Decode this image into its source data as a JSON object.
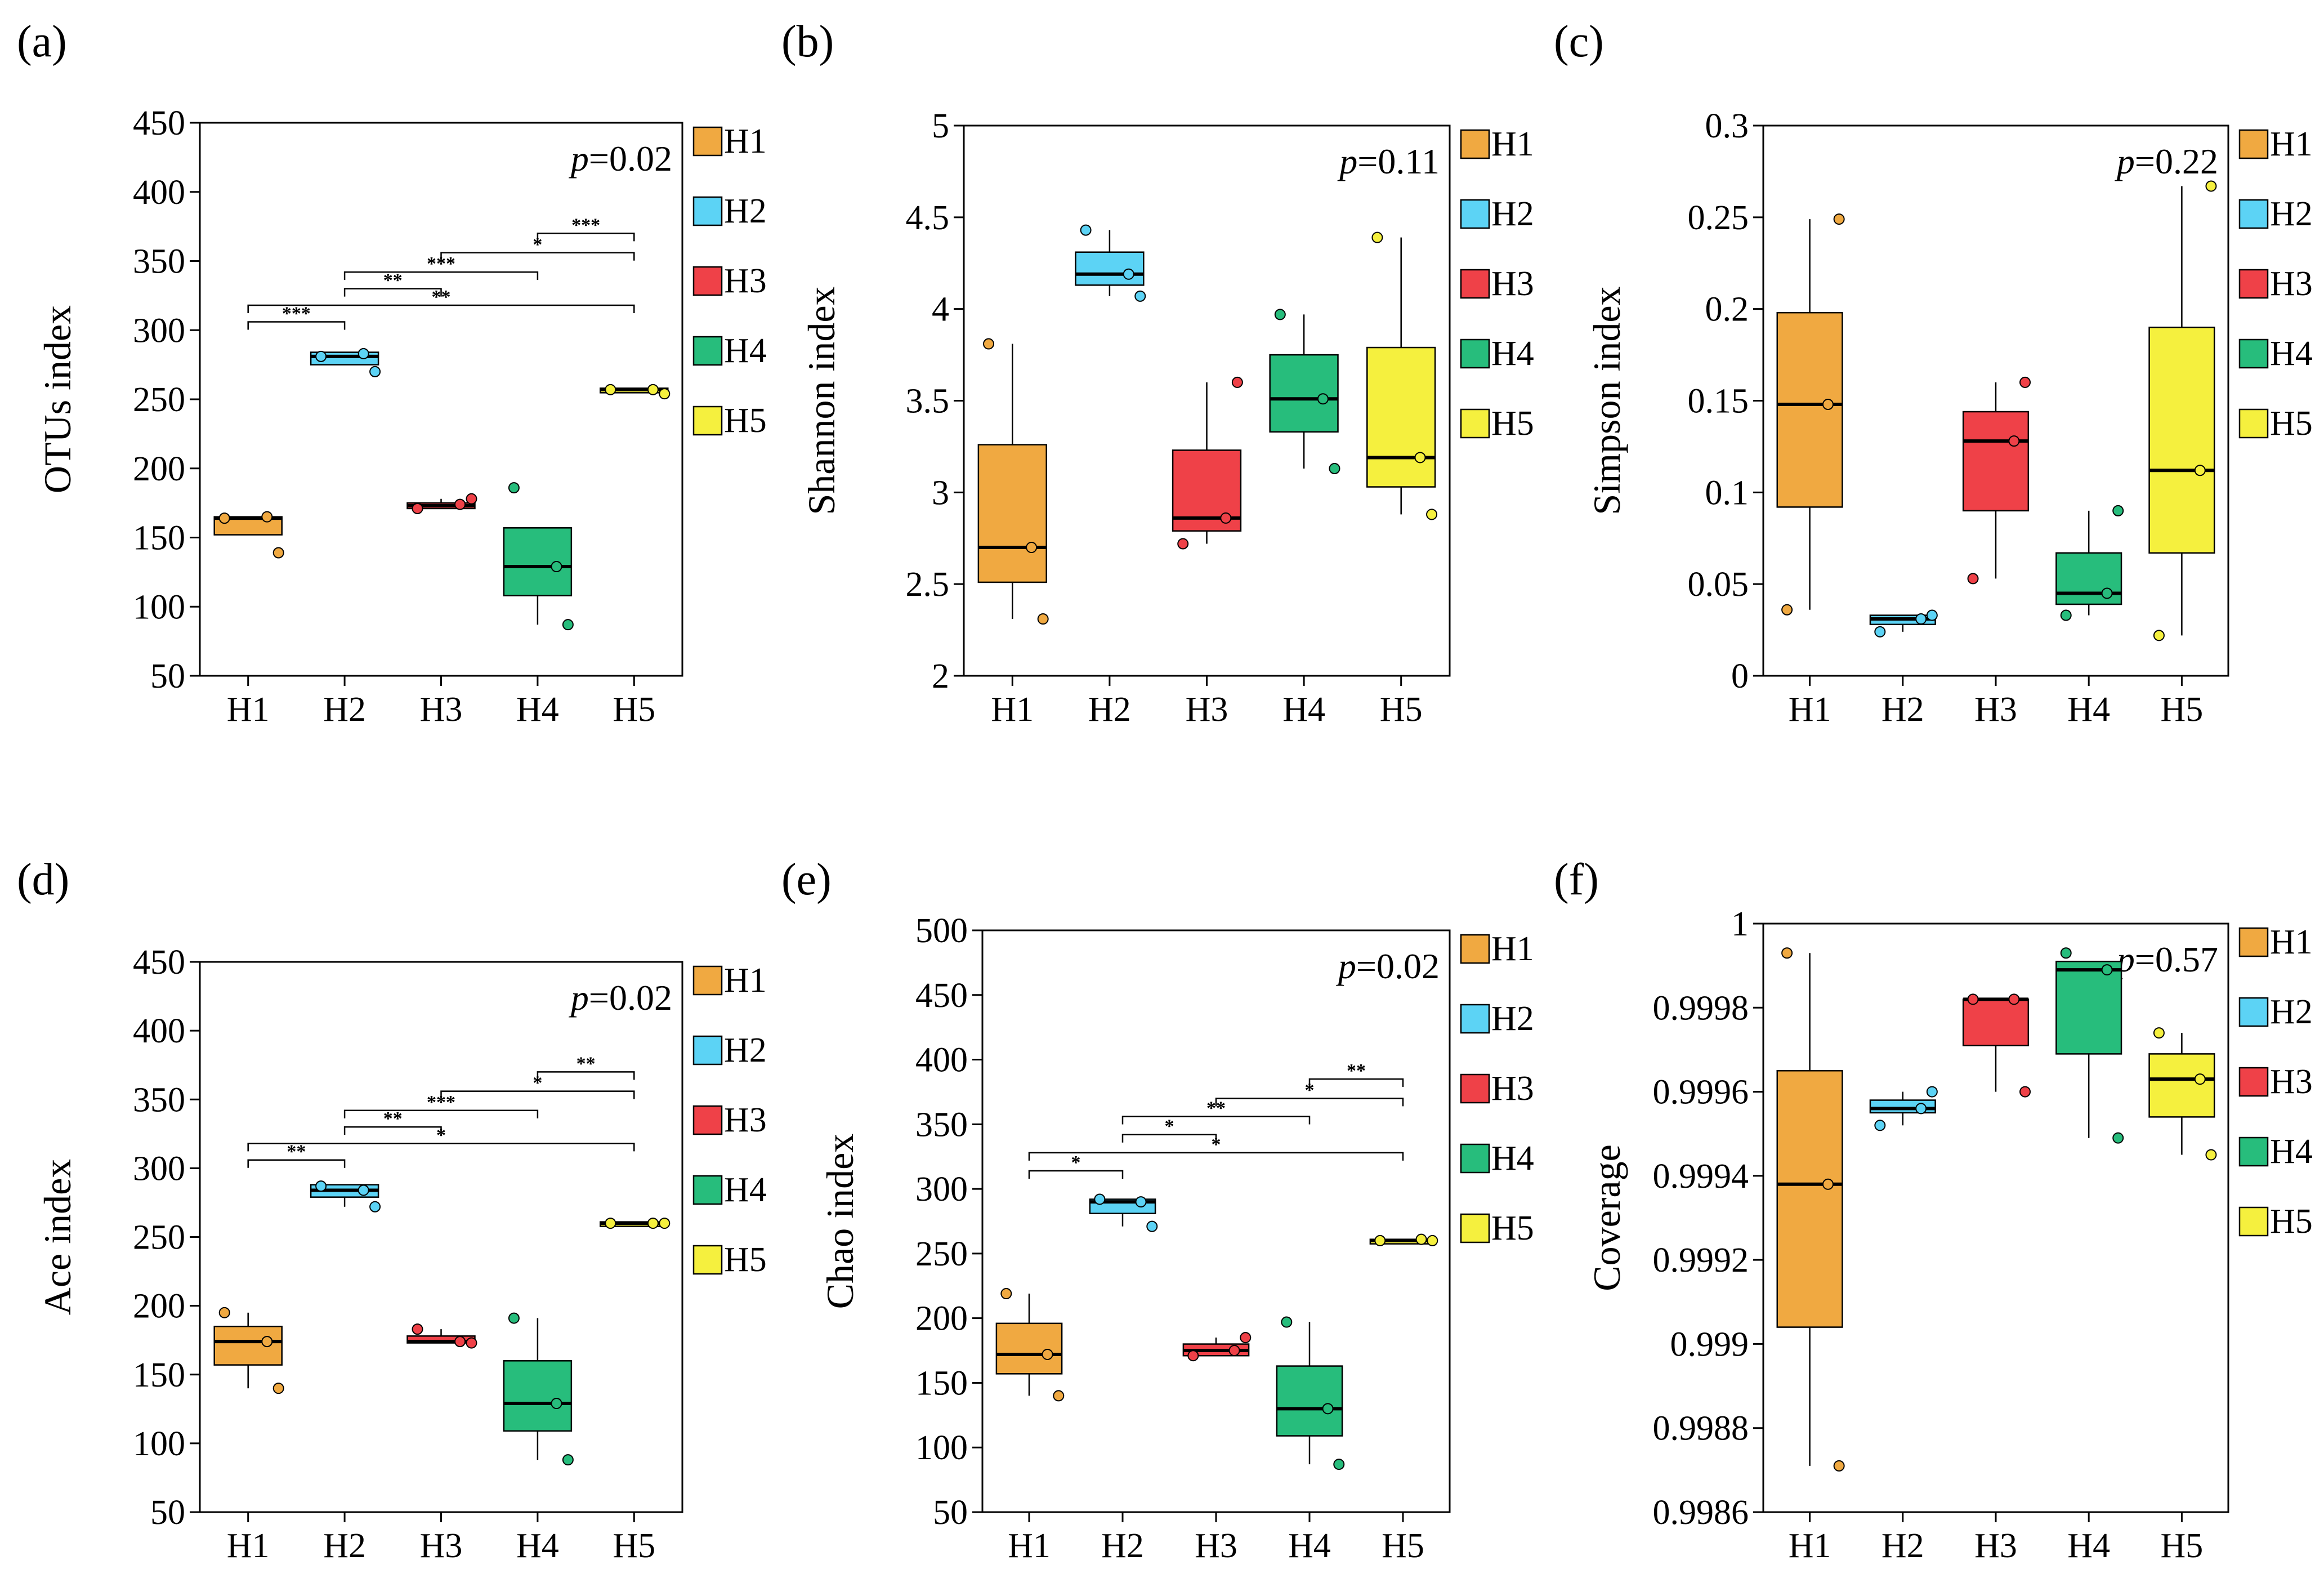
{
  "group_colors": {
    "H1": "#F0A941",
    "H2": "#5CD3F5",
    "H3": "#EF4148",
    "H4": "#27BD7C",
    "H5": "#F5F03E"
  },
  "chart_data": [
    {
      "type": "box",
      "panel": "(a)",
      "ylabel": "OTUs index",
      "ylim": [
        50,
        450
      ],
      "yticks": [
        50,
        100,
        150,
        200,
        250,
        300,
        350,
        400,
        450
      ],
      "ytick_labels": [
        "50",
        "100",
        "150",
        "200",
        "250",
        "300",
        "350",
        "400",
        "450"
      ],
      "categories": [
        "H1",
        "H2",
        "H3",
        "H4",
        "H5"
      ],
      "pvalue": {
        "italic": "p",
        "value": "=0.02"
      },
      "boxes": [
        {
          "q1": 152,
          "median": 164,
          "q3": 165,
          "whisker_low": 152,
          "whisker_high": 165
        },
        {
          "q1": 275,
          "median": 281,
          "q3": 284,
          "whisker_low": 275,
          "whisker_high": 284
        },
        {
          "q1": 171,
          "median": 173,
          "q3": 175,
          "whisker_low": 171,
          "whisker_high": 178
        },
        {
          "q1": 108,
          "median": 129,
          "q3": 157,
          "whisker_low": 87,
          "whisker_high": 157
        },
        {
          "q1": 256,
          "median": 257,
          "q3": 258,
          "whisker_low": 256,
          "whisker_high": 258
        }
      ],
      "points": [
        [
          164,
          165,
          139
        ],
        [
          281,
          283,
          270
        ],
        [
          171,
          174,
          178
        ],
        [
          186,
          129,
          87
        ],
        [
          257,
          257,
          254
        ]
      ],
      "comparisons": [
        {
          "from": "H1",
          "to": "H2",
          "label": "***",
          "y": 306
        },
        {
          "from": "H1",
          "to": "H5",
          "label": "**",
          "y": 318
        },
        {
          "from": "H2",
          "to": "H3",
          "label": "**",
          "y": 330
        },
        {
          "from": "H2",
          "to": "H4",
          "label": "***",
          "y": 342
        },
        {
          "from": "H3",
          "to": "H5",
          "label": "*",
          "y": 356
        },
        {
          "from": "H4",
          "to": "H5",
          "label": "***",
          "y": 370
        }
      ]
    },
    {
      "type": "box",
      "panel": "(b)",
      "ylabel": "Shannon index",
      "ylim": [
        2,
        5
      ],
      "yticks": [
        2,
        2.5,
        3,
        3.5,
        4,
        4.5,
        5
      ],
      "ytick_labels": [
        "2",
        "2.5",
        "3",
        "3.5",
        "4",
        "4.5",
        "5"
      ],
      "categories": [
        "H1",
        "H2",
        "H3",
        "H4",
        "H5"
      ],
      "pvalue": {
        "italic": "p",
        "value": "=0.11"
      },
      "boxes": [
        {
          "q1": 2.51,
          "median": 2.7,
          "q3": 3.26,
          "whisker_low": 2.31,
          "whisker_high": 3.81
        },
        {
          "q1": 4.13,
          "median": 4.19,
          "q3": 4.31,
          "whisker_low": 4.07,
          "whisker_high": 4.43
        },
        {
          "q1": 2.79,
          "median": 2.86,
          "q3": 3.23,
          "whisker_low": 2.72,
          "whisker_high": 3.6
        },
        {
          "q1": 3.33,
          "median": 3.51,
          "q3": 3.75,
          "whisker_low": 3.13,
          "whisker_high": 3.97
        },
        {
          "q1": 3.03,
          "median": 3.19,
          "q3": 3.79,
          "whisker_low": 2.88,
          "whisker_high": 4.39
        }
      ],
      "points": [
        [
          3.81,
          2.7,
          2.31
        ],
        [
          4.43,
          4.19,
          4.07
        ],
        [
          2.72,
          2.86,
          3.6
        ],
        [
          3.97,
          3.51,
          3.13
        ],
        [
          4.39,
          3.19,
          2.88
        ]
      ],
      "comparisons": []
    },
    {
      "type": "box",
      "panel": "(c)",
      "ylabel": "Simpson index",
      "ylim": [
        0,
        0.3
      ],
      "yticks": [
        0,
        0.05,
        0.1,
        0.15,
        0.2,
        0.25,
        0.3
      ],
      "ytick_labels": [
        "0",
        "0.05",
        "0.1",
        "0.15",
        "0.2",
        "0.25",
        "0.3"
      ],
      "categories": [
        "H1",
        "H2",
        "H3",
        "H4",
        "H5"
      ],
      "pvalue": {
        "italic": "p",
        "value": "=0.22"
      },
      "boxes": [
        {
          "q1": 0.092,
          "median": 0.148,
          "q3": 0.198,
          "whisker_low": 0.036,
          "whisker_high": 0.249
        },
        {
          "q1": 0.028,
          "median": 0.031,
          "q3": 0.033,
          "whisker_low": 0.024,
          "whisker_high": 0.033
        },
        {
          "q1": 0.09,
          "median": 0.128,
          "q3": 0.144,
          "whisker_low": 0.053,
          "whisker_high": 0.16
        },
        {
          "q1": 0.039,
          "median": 0.045,
          "q3": 0.067,
          "whisker_low": 0.033,
          "whisker_high": 0.09
        },
        {
          "q1": 0.067,
          "median": 0.112,
          "q3": 0.19,
          "whisker_low": 0.022,
          "whisker_high": 0.267
        }
      ],
      "points": [
        [
          0.036,
          0.148,
          0.249
        ],
        [
          0.024,
          0.031,
          0.033
        ],
        [
          0.053,
          0.128,
          0.16
        ],
        [
          0.033,
          0.045,
          0.09
        ],
        [
          0.022,
          0.112,
          0.267
        ]
      ],
      "comparisons": []
    },
    {
      "type": "box",
      "panel": "(d)",
      "ylabel": "Ace index",
      "ylim": [
        50,
        450
      ],
      "yticks": [
        50,
        100,
        150,
        200,
        250,
        300,
        350,
        400,
        450
      ],
      "ytick_labels": [
        "50",
        "100",
        "150",
        "200",
        "250",
        "300",
        "350",
        "400",
        "450"
      ],
      "categories": [
        "H1",
        "H2",
        "H3",
        "H4",
        "H5"
      ],
      "pvalue": {
        "italic": "p",
        "value": "=0.02"
      },
      "boxes": [
        {
          "q1": 157,
          "median": 174,
          "q3": 185,
          "whisker_low": 140,
          "whisker_high": 195
        },
        {
          "q1": 279,
          "median": 284,
          "q3": 288,
          "whisker_low": 272,
          "whisker_high": 288
        },
        {
          "q1": 173,
          "median": 174,
          "q3": 178,
          "whisker_low": 173,
          "whisker_high": 183
        },
        {
          "q1": 109,
          "median": 129,
          "q3": 160,
          "whisker_low": 88,
          "whisker_high": 191
        },
        {
          "q1": 259,
          "median": 260,
          "q3": 261,
          "whisker_low": 259,
          "whisker_high": 261
        }
      ],
      "points": [
        [
          195,
          174,
          140
        ],
        [
          287,
          284,
          272
        ],
        [
          183,
          174,
          173
        ],
        [
          191,
          129,
          88
        ],
        [
          260,
          260,
          260
        ]
      ],
      "comparisons": [
        {
          "from": "H1",
          "to": "H2",
          "label": "**",
          "y": 306
        },
        {
          "from": "H1",
          "to": "H5",
          "label": "*",
          "y": 318
        },
        {
          "from": "H2",
          "to": "H3",
          "label": "**",
          "y": 330
        },
        {
          "from": "H2",
          "to": "H4",
          "label": "***",
          "y": 342
        },
        {
          "from": "H3",
          "to": "H5",
          "label": "*",
          "y": 356
        },
        {
          "from": "H4",
          "to": "H5",
          "label": "**",
          "y": 370
        }
      ]
    },
    {
      "type": "box",
      "panel": "(e)",
      "ylabel": "Chao index",
      "ylim": [
        50,
        500
      ],
      "yticks": [
        50,
        100,
        150,
        200,
        250,
        300,
        350,
        400,
        450,
        500
      ],
      "ytick_labels": [
        "50",
        "100",
        "150",
        "200",
        "250",
        "300",
        "350",
        "400",
        "450",
        "500"
      ],
      "categories": [
        "H1",
        "H2",
        "H3",
        "H4",
        "H5"
      ],
      "pvalue": {
        "italic": "p",
        "value": "=0.02"
      },
      "boxes": [
        {
          "q1": 157,
          "median": 172,
          "q3": 196,
          "whisker_low": 140,
          "whisker_high": 219
        },
        {
          "q1": 281,
          "median": 290,
          "q3": 292,
          "whisker_low": 271,
          "whisker_high": 292
        },
        {
          "q1": 171,
          "median": 175,
          "q3": 180,
          "whisker_low": 171,
          "whisker_high": 185
        },
        {
          "q1": 109,
          "median": 130,
          "q3": 163,
          "whisker_low": 87,
          "whisker_high": 197
        },
        {
          "q1": 259,
          "median": 260,
          "q3": 261,
          "whisker_low": 259,
          "whisker_high": 261
        }
      ],
      "points": [
        [
          219,
          172,
          140
        ],
        [
          292,
          290,
          271
        ],
        [
          171,
          175,
          185
        ],
        [
          197,
          130,
          87
        ],
        [
          260,
          261,
          260
        ]
      ],
      "comparisons": [
        {
          "from": "H1",
          "to": "H2",
          "label": "*",
          "y": 314
        },
        {
          "from": "H1",
          "to": "H5",
          "label": "*",
          "y": 328
        },
        {
          "from": "H2",
          "to": "H3",
          "label": "*",
          "y": 342
        },
        {
          "from": "H2",
          "to": "H4",
          "label": "**",
          "y": 356
        },
        {
          "from": "H3",
          "to": "H5",
          "label": "*",
          "y": 370
        },
        {
          "from": "H4",
          "to": "H5",
          "label": "**",
          "y": 385
        }
      ]
    },
    {
      "type": "box",
      "panel": "(f)",
      "ylabel": "Coverage",
      "ylim": [
        0.9986,
        1.0
      ],
      "yticks": [
        0.9986,
        0.9988,
        0.999,
        0.9992,
        0.9994,
        0.9996,
        0.9998,
        1.0
      ],
      "ytick_labels": [
        "0.9986",
        "0.9988",
        "0.999",
        "0.9992",
        "0.9994",
        "0.9996",
        "0.9998",
        "1"
      ],
      "categories": [
        "H1",
        "H2",
        "H3",
        "H4",
        "H5"
      ],
      "pvalue": {
        "italic": "p",
        "value": "=0.57"
      },
      "boxes": [
        {
          "q1": 0.99904,
          "median": 0.99938,
          "q3": 0.99965,
          "whisker_low": 0.99871,
          "whisker_high": 0.99993
        },
        {
          "q1": 0.99955,
          "median": 0.99956,
          "q3": 0.99958,
          "whisker_low": 0.99952,
          "whisker_high": 0.9996
        },
        {
          "q1": 0.99971,
          "median": 0.99982,
          "q3": 0.99982,
          "whisker_low": 0.9996,
          "whisker_high": 0.99982
        },
        {
          "q1": 0.99969,
          "median": 0.99989,
          "q3": 0.99991,
          "whisker_low": 0.99949,
          "whisker_high": 0.99991
        },
        {
          "q1": 0.99954,
          "median": 0.99963,
          "q3": 0.99969,
          "whisker_low": 0.99945,
          "whisker_high": 0.99974
        }
      ],
      "points": [
        [
          0.99993,
          0.99938,
          0.99871
        ],
        [
          0.99952,
          0.99956,
          0.9996
        ],
        [
          0.99982,
          0.99982,
          0.9996
        ],
        [
          0.99993,
          0.99989,
          0.99949
        ],
        [
          0.99974,
          0.99963,
          0.99945
        ]
      ],
      "comparisons": []
    }
  ]
}
